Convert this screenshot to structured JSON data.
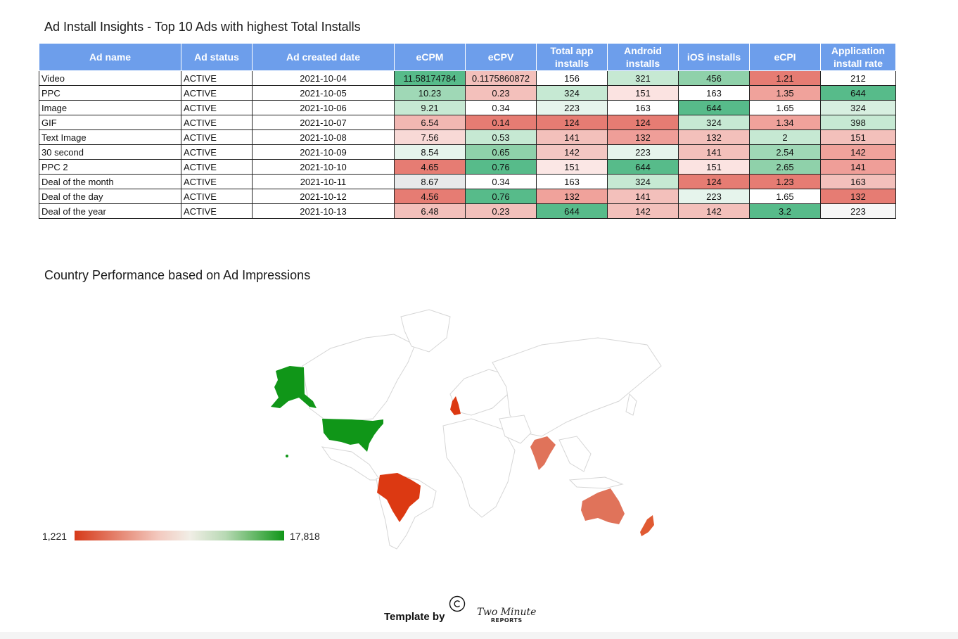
{
  "table_title": "Ad Install Insights - Top 10 Ads with highest Total Installs",
  "map_title": "Country Performance based on Ad Impressions",
  "columns": [
    "Ad name",
    "Ad status",
    "Ad created date",
    "eCPM",
    "eCPV",
    "Total app installs",
    "Android installs",
    "iOS installs",
    "eCPI",
    "Application install rate"
  ],
  "rows": [
    {
      "name": "Video",
      "status": "ACTIVE",
      "date": "2021-10-04",
      "ecpm": "11.58174784",
      "ecpv": "0.1175860872",
      "total": "156",
      "android": "321",
      "ios": "456",
      "ecpi": "1.21",
      "rate": "212"
    },
    {
      "name": "PPC",
      "status": "ACTIVE",
      "date": "2021-10-05",
      "ecpm": "10.23",
      "ecpv": "0.23",
      "total": "324",
      "android": "151",
      "ios": "163",
      "ecpi": "1.35",
      "rate": "644"
    },
    {
      "name": "Image",
      "status": "ACTIVE",
      "date": "2021-10-06",
      "ecpm": "9.21",
      "ecpv": "0.34",
      "total": "223",
      "android": "163",
      "ios": "644",
      "ecpi": "1.65",
      "rate": "324"
    },
    {
      "name": "GIF",
      "status": "ACTIVE",
      "date": "2021-10-07",
      "ecpm": "6.54",
      "ecpv": "0.14",
      "total": "124",
      "android": "124",
      "ios": "324",
      "ecpi": "1.34",
      "rate": "398"
    },
    {
      "name": "Text Image",
      "status": "ACTIVE",
      "date": "2021-10-08",
      "ecpm": "7.56",
      "ecpv": "0.53",
      "total": "141",
      "android": "132",
      "ios": "132",
      "ecpi": "2",
      "rate": "151"
    },
    {
      "name": "30 second",
      "status": "ACTIVE",
      "date": "2021-10-09",
      "ecpm": "8.54",
      "ecpv": "0.65",
      "total": "142",
      "android": "223",
      "ios": "141",
      "ecpi": "2.54",
      "rate": "142"
    },
    {
      "name": "PPC 2",
      "status": "ACTIVE",
      "date": "2021-10-10",
      "ecpm": "4.65",
      "ecpv": "0.76",
      "total": "151",
      "android": "644",
      "ios": "151",
      "ecpi": "2.65",
      "rate": "141"
    },
    {
      "name": "Deal of the month",
      "status": "ACTIVE",
      "date": "2021-10-11",
      "ecpm": "8.67",
      "ecpv": "0.34",
      "total": "163",
      "android": "324",
      "ios": "124",
      "ecpi": "1.23",
      "rate": "163"
    },
    {
      "name": "Deal of the day",
      "status": "ACTIVE",
      "date": "2021-10-12",
      "ecpm": "4.56",
      "ecpv": "0.76",
      "total": "132",
      "android": "141",
      "ios": "223",
      "ecpi": "1.65",
      "rate": "132"
    },
    {
      "name": "Deal of the year",
      "status": "ACTIVE",
      "date": "2021-10-13",
      "ecpm": "6.48",
      "ecpv": "0.23",
      "total": "644",
      "android": "142",
      "ios": "142",
      "ecpi": "3.2",
      "rate": "223"
    }
  ],
  "cell_colors": {
    "ecpm": [
      "#57bb8a",
      "#9fd8b6",
      "#c6e9d3",
      "#f2b7b2",
      "#f8d9d6",
      "#e6f4ec",
      "#e67c73",
      "#e8e9ea",
      "#e67c73",
      "#f3c0bb"
    ],
    "ecpv": [
      "#f3c0bb",
      "#f3c0bb",
      "#ffffff",
      "#e67c73",
      "#c6e9d3",
      "#8fd1aa",
      "#57bb8a",
      "#ffffff",
      "#57bb8a",
      "#f3c0bb"
    ],
    "total": [
      "#ffffff",
      "#c6e9d3",
      "#e6f4ec",
      "#e67c73",
      "#f3c0bb",
      "#f4c7c3",
      "#fbe7e5",
      "#ffffff",
      "#f0a29b",
      "#57bb8a"
    ],
    "android": [
      "#c6e9d3",
      "#fbe3e1",
      "#ffffff",
      "#e67c73",
      "#ef9e98",
      "#e6f4ec",
      "#57bb8a",
      "#c6e9d3",
      "#f3c0bb",
      "#f3c0bb"
    ],
    "ios": [
      "#8fd1aa",
      "#ffffff",
      "#57bb8a",
      "#c6e9d3",
      "#f3c0bb",
      "#f3c0bb",
      "#fbe3e1",
      "#e67c73",
      "#e6f4ec",
      "#f3c0bb"
    ],
    "ecpi": [
      "#e67c73",
      "#f0a29b",
      "#ffffff",
      "#f0a29b",
      "#c6e9d3",
      "#9fd8b6",
      "#8fd1aa",
      "#e67c73",
      "#ffffff",
      "#57bb8a"
    ],
    "rate": [
      "#ffffff",
      "#57bb8a",
      "#d7efe0",
      "#c6e9d3",
      "#f3c0bb",
      "#f0a29b",
      "#ef9e98",
      "#f3c0bb",
      "#e67c73",
      "#f7f7f7"
    ]
  },
  "map_colors": {
    "border": "#d6d6d6",
    "land": "#ffffff",
    "high": "#109618",
    "mid_high": "#e0735a",
    "low": "#dc3912",
    "mid": "#e05a32"
  },
  "legend": {
    "min": "1,221",
    "max": "17,818"
  },
  "footer": {
    "template_by": "Template by",
    "brand_line1": "Two Minute",
    "brand_line2": "REPORTS"
  }
}
